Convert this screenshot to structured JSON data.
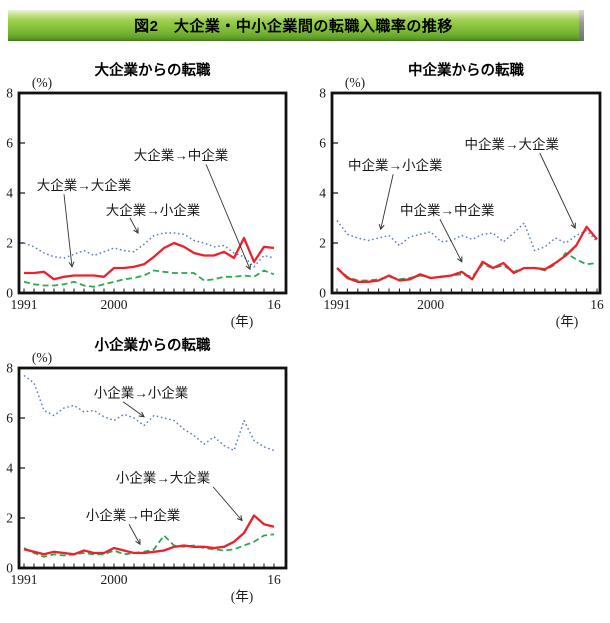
{
  "banner": {
    "title": "図2　大企業・中小企業間の転職入職率の推移",
    "bg_color": "#8cc63f",
    "text_color": "#000000"
  },
  "line_colors": {
    "to_large": "#e8232d",
    "to_medium": "#2ca84e",
    "to_small": "#5b7fc0",
    "arrow": "#333333"
  },
  "chart_data": [
    {
      "type": "line",
      "title": "大企業からの転職",
      "y_unit_label": "(%)",
      "x_unit_label": "(年)",
      "ylim": [
        0,
        8
      ],
      "yticks": [
        0,
        2,
        4,
        6,
        8
      ],
      "x_range": {
        "start_year": 1991,
        "end_year": 2016
      },
      "xticks": [
        {
          "year": 1991,
          "label": "1991"
        },
        {
          "year": 2000,
          "label": "2000"
        },
        {
          "year": 2016,
          "label": "16"
        }
      ],
      "series": [
        {
          "name": "大企業→小企業",
          "line_style": "dotted",
          "color": "#5b7fc0",
          "values": [
            2.0,
            1.85,
            1.6,
            1.45,
            1.4,
            1.55,
            1.7,
            1.5,
            1.65,
            1.8,
            1.7,
            1.65,
            1.95,
            2.3,
            2.4,
            2.4,
            2.35,
            2.1,
            2.0,
            1.85,
            1.9,
            1.6,
            1.45,
            1.05,
            1.5,
            1.4
          ]
        },
        {
          "name": "大企業→中企業",
          "line_style": "dashed",
          "color": "#2ca84e",
          "values": [
            0.45,
            0.35,
            0.3,
            0.3,
            0.35,
            0.45,
            0.3,
            0.25,
            0.35,
            0.45,
            0.55,
            0.6,
            0.7,
            0.9,
            0.85,
            0.8,
            0.8,
            0.8,
            0.5,
            0.55,
            0.65,
            0.65,
            0.7,
            0.65,
            0.9,
            0.75
          ]
        },
        {
          "name": "大企業→大企業",
          "line_style": "solid",
          "color": "#e8232d",
          "values": [
            0.8,
            0.8,
            0.85,
            0.55,
            0.65,
            0.7,
            0.7,
            0.7,
            0.65,
            1.0,
            1.0,
            1.05,
            1.15,
            1.45,
            1.8,
            2.0,
            1.85,
            1.6,
            1.5,
            1.5,
            1.65,
            1.4,
            2.2,
            1.25,
            1.85,
            1.8
          ]
        }
      ],
      "annotations": [
        {
          "text": "大企業→大企業",
          "label": [
            1997.0,
            4.3
          ],
          "from": [
            1995.0,
            3.95
          ],
          "to": [
            1995.8,
            1.05
          ]
        },
        {
          "text": "大企業→小企業",
          "label": [
            2003.9,
            3.3
          ],
          "from": [
            2001.6,
            3.0
          ],
          "to": [
            2002.4,
            2.4
          ]
        },
        {
          "text": "大企業→中企業",
          "label": [
            2006.7,
            5.5
          ],
          "from": [
            2009.2,
            5.15
          ],
          "to": [
            2013.6,
            0.95
          ]
        }
      ]
    },
    {
      "type": "line",
      "title": "中企業からの転職",
      "y_unit_label": "(%)",
      "x_unit_label": "(年)",
      "ylim": [
        0,
        8
      ],
      "yticks": [
        0,
        2,
        4,
        6,
        8
      ],
      "x_range": {
        "start_year": 1991,
        "end_year": 2016
      },
      "xticks": [
        {
          "year": 1991,
          "label": "1991"
        },
        {
          "year": 2000,
          "label": "2000"
        },
        {
          "year": 2016,
          "label": "16"
        }
      ],
      "series": [
        {
          "name": "中企業→小企業",
          "line_style": "dotted",
          "color": "#5b7fc0",
          "values": [
            2.9,
            2.35,
            2.2,
            2.1,
            2.2,
            2.3,
            1.9,
            2.25,
            2.35,
            2.45,
            2.05,
            2.1,
            2.3,
            2.15,
            2.35,
            2.4,
            2.05,
            2.4,
            2.8,
            1.7,
            1.85,
            2.2,
            2.0,
            2.3,
            2.5,
            2.05
          ]
        },
        {
          "name": "中企業→中企業",
          "line_style": "dashed",
          "color": "#2ca84e",
          "values": [
            1.0,
            0.65,
            0.5,
            0.5,
            0.55,
            0.65,
            0.55,
            0.6,
            0.7,
            0.6,
            0.65,
            0.7,
            0.75,
            0.65,
            1.15,
            1.0,
            1.1,
            0.85,
            1.0,
            1.0,
            0.9,
            1.15,
            1.6,
            1.35,
            1.15,
            1.2
          ]
        },
        {
          "name": "中企業→大企業",
          "line_style": "solid",
          "color": "#e8232d",
          "values": [
            1.0,
            0.6,
            0.45,
            0.45,
            0.5,
            0.7,
            0.5,
            0.55,
            0.75,
            0.6,
            0.65,
            0.7,
            0.85,
            0.55,
            1.25,
            1.0,
            1.2,
            0.8,
            1.0,
            1.0,
            0.95,
            1.2,
            1.5,
            1.9,
            2.65,
            2.15
          ]
        }
      ],
      "annotations": [
        {
          "text": "中企業→小企業",
          "label": [
            1996.6,
            5.1
          ],
          "from": [
            1996.4,
            4.75
          ],
          "to": [
            1995.2,
            2.55
          ]
        },
        {
          "text": "中企業→大企業",
          "label": [
            2007.8,
            5.95
          ],
          "from": [
            2010.5,
            5.6
          ],
          "to": [
            2013.9,
            2.6
          ]
        },
        {
          "text": "中企業→中企業",
          "label": [
            2001.6,
            3.3
          ],
          "from": [
            2000.9,
            2.95
          ],
          "to": [
            2003.0,
            1.25
          ]
        }
      ]
    },
    {
      "type": "line",
      "title": "小企業からの転職",
      "y_unit_label": "(%)",
      "x_unit_label": "(年)",
      "ylim": [
        0,
        8
      ],
      "yticks": [
        0,
        2,
        4,
        6,
        8
      ],
      "x_range": {
        "start_year": 1991,
        "end_year": 2016
      },
      "xticks": [
        {
          "year": 1991,
          "label": "1991"
        },
        {
          "year": 2000,
          "label": "2000"
        },
        {
          "year": 2016,
          "label": "16"
        }
      ],
      "series": [
        {
          "name": "小企業→小企業",
          "line_style": "dotted",
          "color": "#5b7fc0",
          "values": [
            7.7,
            7.4,
            6.3,
            6.1,
            6.4,
            6.5,
            6.25,
            6.3,
            6.05,
            5.9,
            6.15,
            6.0,
            5.7,
            6.1,
            6.0,
            5.9,
            5.55,
            5.3,
            4.95,
            5.25,
            4.9,
            4.7,
            5.9,
            5.1,
            4.85,
            4.7
          ]
        },
        {
          "name": "小企業→中企業",
          "line_style": "dashed",
          "color": "#2ca84e",
          "values": [
            0.8,
            0.6,
            0.45,
            0.55,
            0.5,
            0.55,
            0.6,
            0.55,
            0.55,
            0.7,
            0.55,
            0.6,
            0.65,
            0.75,
            1.3,
            0.9,
            0.85,
            0.9,
            0.8,
            0.75,
            0.7,
            0.75,
            0.9,
            1.05,
            1.3,
            1.35
          ]
        },
        {
          "name": "小企業→大企業",
          "line_style": "solid",
          "color": "#e8232d",
          "values": [
            0.75,
            0.65,
            0.55,
            0.65,
            0.6,
            0.55,
            0.7,
            0.6,
            0.6,
            0.8,
            0.7,
            0.6,
            0.6,
            0.65,
            0.7,
            0.85,
            0.9,
            0.85,
            0.85,
            0.8,
            0.85,
            1.05,
            1.4,
            2.1,
            1.75,
            1.65
          ]
        }
      ],
      "annotations": [
        {
          "text": "小企業→小企業",
          "label": [
            2002.7,
            7.0
          ],
          "from": [
            2000.9,
            6.65
          ],
          "to": [
            2003.0,
            6.05
          ]
        },
        {
          "text": "小企業→大企業",
          "label": [
            2004.9,
            3.6
          ],
          "from": [
            2009.9,
            3.25
          ],
          "to": [
            2012.8,
            1.9
          ]
        },
        {
          "text": "小企業→中企業",
          "label": [
            2001.9,
            2.1
          ],
          "from": [
            2001.5,
            1.75
          ],
          "to": [
            2002.6,
            0.95
          ]
        }
      ]
    }
  ]
}
